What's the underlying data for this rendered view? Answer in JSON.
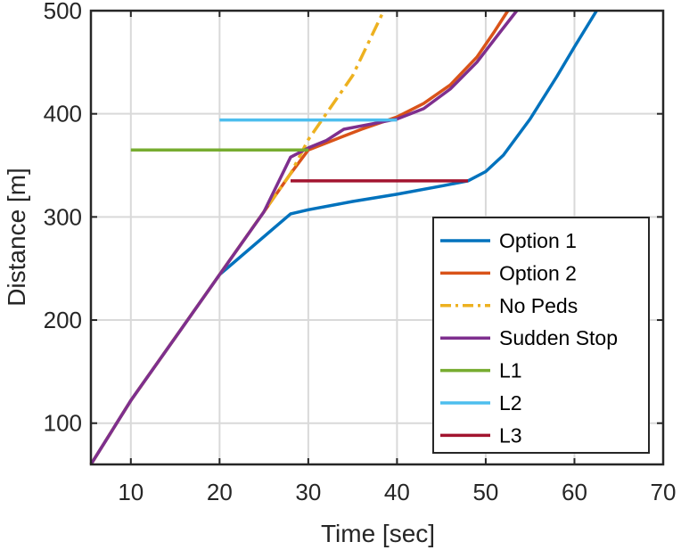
{
  "chart_data": {
    "type": "line",
    "title": "",
    "xlabel": "Time [sec]",
    "ylabel": "Distance [m]",
    "xlim": [
      5.5,
      70
    ],
    "ylim": [
      60,
      500
    ],
    "xticks": [
      10,
      20,
      30,
      40,
      50,
      60,
      70
    ],
    "yticks": [
      100,
      200,
      300,
      400,
      500
    ],
    "xtick_labels": [
      "10",
      "20",
      "30",
      "40",
      "50",
      "60",
      "70"
    ],
    "ytick_labels": [
      "100",
      "200",
      "300",
      "400",
      "500"
    ],
    "grid": true,
    "legend_position": "bottom-right",
    "series": [
      {
        "name": "Option 1",
        "color": "#0072BD",
        "style": "solid",
        "x": [
          5.5,
          10,
          15,
          20,
          28,
          30,
          35,
          40,
          45,
          48,
          50,
          52,
          55,
          58,
          60,
          62.5
        ],
        "y": [
          60,
          122,
          183,
          244,
          303,
          307,
          315,
          322,
          330,
          335,
          344,
          360,
          395,
          436,
          465,
          500
        ]
      },
      {
        "name": "Option 2",
        "color": "#D95319",
        "style": "solid",
        "x": [
          5.5,
          10,
          15,
          20,
          25,
          28,
          30,
          33,
          36,
          40,
          43,
          46,
          49,
          51,
          52.5
        ],
        "y": [
          60,
          122,
          183,
          244,
          305,
          342,
          365,
          375,
          385,
          397,
          410,
          428,
          455,
          480,
          500
        ]
      },
      {
        "name": "No Peds",
        "color": "#EDB120",
        "style": "dashdot",
        "x": [
          5.5,
          10,
          20,
          28,
          30,
          35,
          38.5
        ],
        "y": [
          60,
          122,
          244,
          342,
          375,
          437,
          500
        ]
      },
      {
        "name": "Sudden Stop",
        "color": "#7E2F8E",
        "style": "solid",
        "x": [
          5.5,
          10,
          15,
          20,
          25,
          28,
          30,
          32,
          34,
          37,
          40,
          43,
          46,
          49,
          51.5,
          53.5
        ],
        "y": [
          60,
          122,
          183,
          244,
          305,
          358,
          367,
          374,
          385,
          390,
          395,
          405,
          424,
          450,
          478,
          500
        ]
      },
      {
        "name": "L1",
        "color": "#77AC30",
        "style": "solid",
        "x": [
          10,
          30
        ],
        "y": [
          365,
          365
        ]
      },
      {
        "name": "L2",
        "color": "#4DBEEE",
        "style": "solid",
        "x": [
          20,
          40
        ],
        "y": [
          394,
          394
        ]
      },
      {
        "name": "L3",
        "color": "#A2142F",
        "style": "solid",
        "x": [
          28,
          48
        ],
        "y": [
          335,
          335
        ]
      }
    ]
  }
}
